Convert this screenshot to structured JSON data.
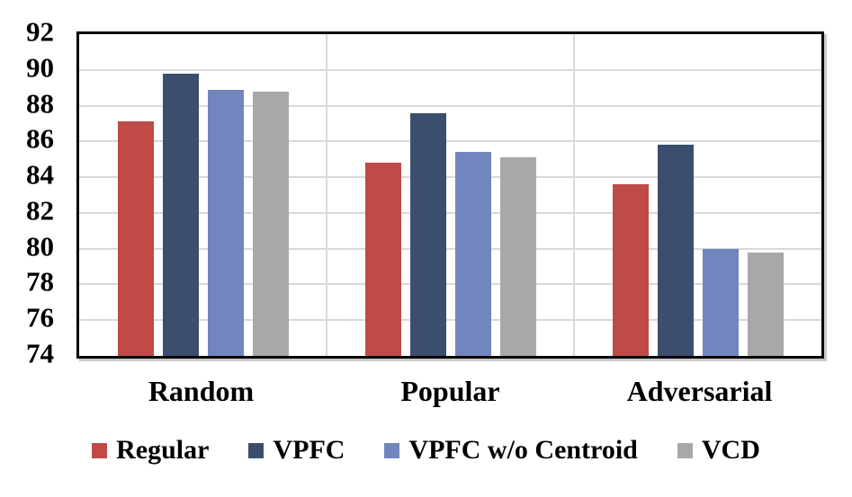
{
  "chart_data": {
    "type": "bar",
    "title": "",
    "xlabel": "",
    "ylabel": "",
    "categories": [
      "Random",
      "Popular",
      "Adversarial"
    ],
    "series": [
      {
        "name": "Regular",
        "color": "#C04A47",
        "values": [
          87.1,
          84.8,
          83.6
        ]
      },
      {
        "name": "VPFC",
        "color": "#3B4E6E",
        "values": [
          89.8,
          87.6,
          85.8
        ]
      },
      {
        "name": "VPFC w/o Centroid",
        "color": "#7186BE",
        "values": [
          88.9,
          85.4,
          80.0
        ]
      },
      {
        "name": "VCD",
        "color": "#A8A8A8",
        "values": [
          88.8,
          85.1,
          79.8
        ]
      }
    ],
    "ylim": [
      74,
      92
    ],
    "yticks": [
      74,
      76,
      78,
      80,
      82,
      84,
      86,
      88,
      90,
      92
    ],
    "grid": true,
    "gridline_every": 2,
    "legend_position": "bottom",
    "styles": {
      "gridline_color": "#D9D9D9",
      "frame_color": "#000000",
      "background_color": "#FFFFFF",
      "text_color": "#000000"
    }
  }
}
